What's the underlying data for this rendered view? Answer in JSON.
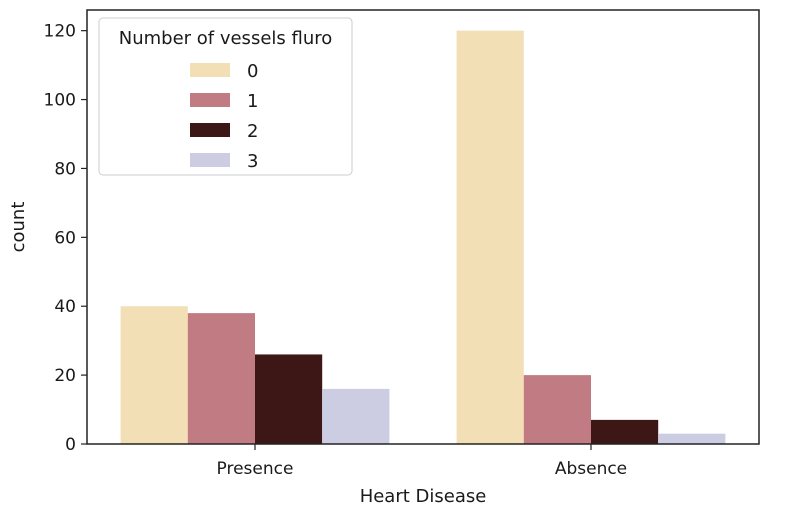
{
  "chart_data": {
    "type": "bar",
    "categories": [
      "Presence",
      "Absence"
    ],
    "xlabel": "Heart Disease",
    "ylabel": "count",
    "ylim": [
      0,
      126
    ],
    "yticks": [
      0,
      20,
      40,
      60,
      80,
      100,
      120
    ],
    "legend": {
      "title": "Number of vessels fluro",
      "placement": "top-left"
    },
    "series": [
      {
        "name": "0",
        "values": [
          40,
          120
        ],
        "color": "#f2dfb5"
      },
      {
        "name": "1",
        "values": [
          38,
          20
        ],
        "color": "#c17b83"
      },
      {
        "name": "2",
        "values": [
          26,
          7
        ],
        "color": "#3d1616"
      },
      {
        "name": "3",
        "values": [
          16,
          3
        ],
        "color": "#cccde2"
      }
    ],
    "grid": false
  }
}
